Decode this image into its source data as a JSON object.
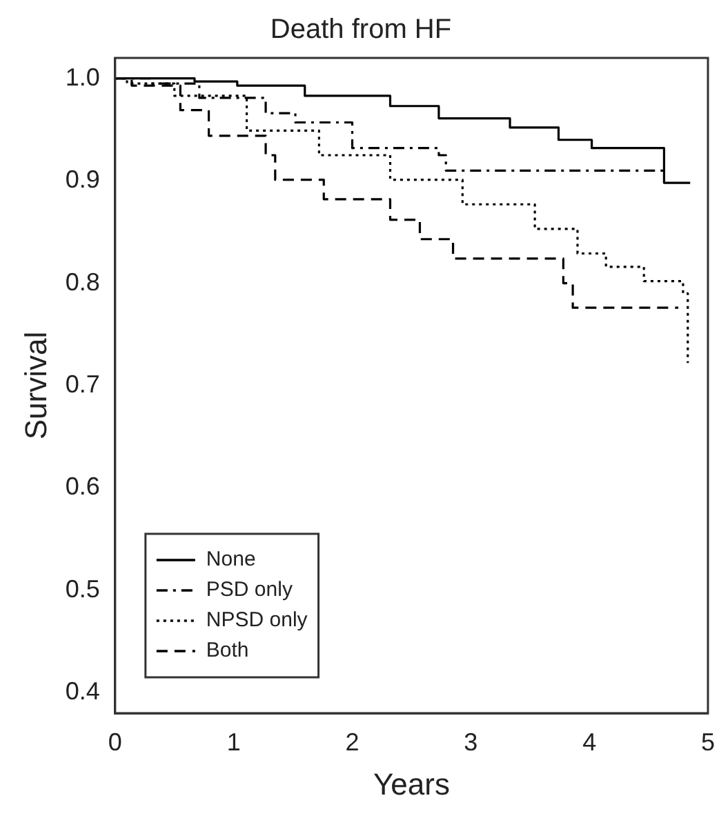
{
  "chart_data": {
    "type": "step",
    "title": "Death from HF",
    "xlabel": "Years",
    "ylabel": "Survival",
    "xlim": [
      0,
      5
    ],
    "xticks": [
      0,
      1,
      2,
      3,
      4,
      5
    ],
    "ylim": [
      0.38,
      1.02
    ],
    "yticks": [
      0.4,
      0.5,
      0.6,
      0.7,
      0.8,
      0.9,
      {
        "value": 1,
        "label": "1.0"
      }
    ],
    "grid": false,
    "legend": "bottom left",
    "marker": "none",
    "series": [
      {
        "name": "None",
        "color": "#000000",
        "line_style": "solid",
        "x": [
          0,
          0.67,
          1.03,
          1.6,
          2.32,
          2.73,
          3.33,
          3.74,
          4.02,
          4.63,
          4.85
        ],
        "values": [
          1.0,
          0.997,
          0.993,
          0.983,
          0.973,
          0.961,
          0.952,
          0.94,
          0.932,
          0.898,
          0.898
        ]
      },
      {
        "name": "PSD only",
        "color": "#000000",
        "line_style": "dashdot",
        "x": [
          0,
          0.3,
          0.71,
          1.27,
          1.52,
          2.0,
          2.73,
          2.79,
          4.65
        ],
        "values": [
          1.0,
          0.995,
          0.981,
          0.966,
          0.957,
          0.932,
          0.925,
          0.91,
          0.91
        ]
      },
      {
        "name": "NPSD only",
        "color": "#000000",
        "line_style": "dotted",
        "x": [
          0,
          0.1,
          0.5,
          1.11,
          1.72,
          2.32,
          2.93,
          3.54,
          3.9,
          4.14,
          4.46,
          4.79,
          4.83
        ],
        "values": [
          1.0,
          0.995,
          0.983,
          0.949,
          0.925,
          0.901,
          0.877,
          0.853,
          0.829,
          0.816,
          0.802,
          0.79,
          0.722
        ]
      },
      {
        "name": "Both",
        "color": "#000000",
        "line_style": "dashed",
        "x": [
          0,
          0.14,
          0.55,
          0.79,
          1.27,
          1.35,
          1.76,
          2.32,
          2.57,
          2.85,
          3.78,
          3.86,
          4.75
        ],
        "values": [
          1.0,
          0.993,
          0.969,
          0.944,
          0.925,
          0.901,
          0.882,
          0.862,
          0.843,
          0.824,
          0.8,
          0.776,
          0.776
        ]
      }
    ]
  }
}
